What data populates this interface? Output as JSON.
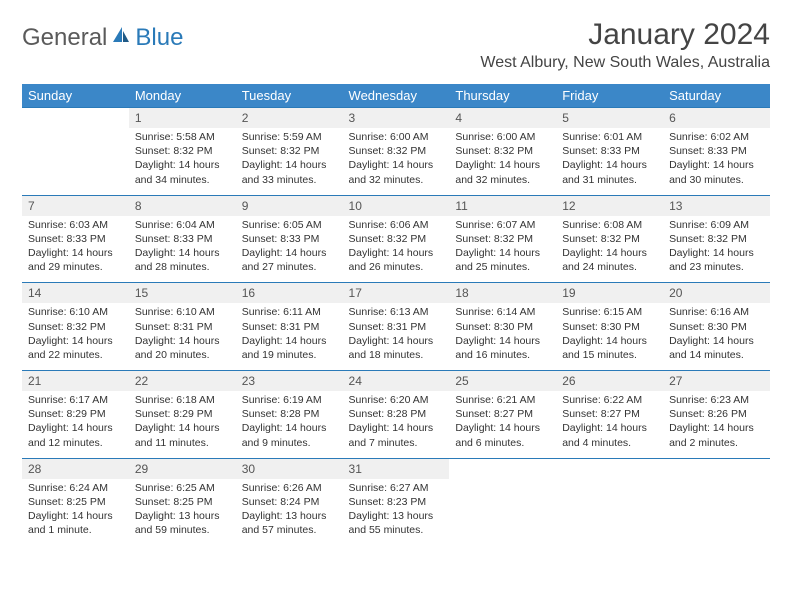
{
  "brand": {
    "part1": "General",
    "part2": "Blue"
  },
  "colors": {
    "header_bg": "#3b87c8",
    "header_text": "#ffffff",
    "daynum_bg": "#f0f0f0",
    "border": "#2a7ab8",
    "text": "#333333",
    "title": "#444444"
  },
  "title": "January 2024",
  "location": "West Albury, New South Wales, Australia",
  "daysOfWeek": [
    "Sunday",
    "Monday",
    "Tuesday",
    "Wednesday",
    "Thursday",
    "Friday",
    "Saturday"
  ],
  "weeks": [
    [
      null,
      {
        "n": "1",
        "sr": "Sunrise: 5:58 AM",
        "ss": "Sunset: 8:32 PM",
        "dl": "Daylight: 14 hours and 34 minutes."
      },
      {
        "n": "2",
        "sr": "Sunrise: 5:59 AM",
        "ss": "Sunset: 8:32 PM",
        "dl": "Daylight: 14 hours and 33 minutes."
      },
      {
        "n": "3",
        "sr": "Sunrise: 6:00 AM",
        "ss": "Sunset: 8:32 PM",
        "dl": "Daylight: 14 hours and 32 minutes."
      },
      {
        "n": "4",
        "sr": "Sunrise: 6:00 AM",
        "ss": "Sunset: 8:32 PM",
        "dl": "Daylight: 14 hours and 32 minutes."
      },
      {
        "n": "5",
        "sr": "Sunrise: 6:01 AM",
        "ss": "Sunset: 8:33 PM",
        "dl": "Daylight: 14 hours and 31 minutes."
      },
      {
        "n": "6",
        "sr": "Sunrise: 6:02 AM",
        "ss": "Sunset: 8:33 PM",
        "dl": "Daylight: 14 hours and 30 minutes."
      }
    ],
    [
      {
        "n": "7",
        "sr": "Sunrise: 6:03 AM",
        "ss": "Sunset: 8:33 PM",
        "dl": "Daylight: 14 hours and 29 minutes."
      },
      {
        "n": "8",
        "sr": "Sunrise: 6:04 AM",
        "ss": "Sunset: 8:33 PM",
        "dl": "Daylight: 14 hours and 28 minutes."
      },
      {
        "n": "9",
        "sr": "Sunrise: 6:05 AM",
        "ss": "Sunset: 8:33 PM",
        "dl": "Daylight: 14 hours and 27 minutes."
      },
      {
        "n": "10",
        "sr": "Sunrise: 6:06 AM",
        "ss": "Sunset: 8:32 PM",
        "dl": "Daylight: 14 hours and 26 minutes."
      },
      {
        "n": "11",
        "sr": "Sunrise: 6:07 AM",
        "ss": "Sunset: 8:32 PM",
        "dl": "Daylight: 14 hours and 25 minutes."
      },
      {
        "n": "12",
        "sr": "Sunrise: 6:08 AM",
        "ss": "Sunset: 8:32 PM",
        "dl": "Daylight: 14 hours and 24 minutes."
      },
      {
        "n": "13",
        "sr": "Sunrise: 6:09 AM",
        "ss": "Sunset: 8:32 PM",
        "dl": "Daylight: 14 hours and 23 minutes."
      }
    ],
    [
      {
        "n": "14",
        "sr": "Sunrise: 6:10 AM",
        "ss": "Sunset: 8:32 PM",
        "dl": "Daylight: 14 hours and 22 minutes."
      },
      {
        "n": "15",
        "sr": "Sunrise: 6:10 AM",
        "ss": "Sunset: 8:31 PM",
        "dl": "Daylight: 14 hours and 20 minutes."
      },
      {
        "n": "16",
        "sr": "Sunrise: 6:11 AM",
        "ss": "Sunset: 8:31 PM",
        "dl": "Daylight: 14 hours and 19 minutes."
      },
      {
        "n": "17",
        "sr": "Sunrise: 6:13 AM",
        "ss": "Sunset: 8:31 PM",
        "dl": "Daylight: 14 hours and 18 minutes."
      },
      {
        "n": "18",
        "sr": "Sunrise: 6:14 AM",
        "ss": "Sunset: 8:30 PM",
        "dl": "Daylight: 14 hours and 16 minutes."
      },
      {
        "n": "19",
        "sr": "Sunrise: 6:15 AM",
        "ss": "Sunset: 8:30 PM",
        "dl": "Daylight: 14 hours and 15 minutes."
      },
      {
        "n": "20",
        "sr": "Sunrise: 6:16 AM",
        "ss": "Sunset: 8:30 PM",
        "dl": "Daylight: 14 hours and 14 minutes."
      }
    ],
    [
      {
        "n": "21",
        "sr": "Sunrise: 6:17 AM",
        "ss": "Sunset: 8:29 PM",
        "dl": "Daylight: 14 hours and 12 minutes."
      },
      {
        "n": "22",
        "sr": "Sunrise: 6:18 AM",
        "ss": "Sunset: 8:29 PM",
        "dl": "Daylight: 14 hours and 11 minutes."
      },
      {
        "n": "23",
        "sr": "Sunrise: 6:19 AM",
        "ss": "Sunset: 8:28 PM",
        "dl": "Daylight: 14 hours and 9 minutes."
      },
      {
        "n": "24",
        "sr": "Sunrise: 6:20 AM",
        "ss": "Sunset: 8:28 PM",
        "dl": "Daylight: 14 hours and 7 minutes."
      },
      {
        "n": "25",
        "sr": "Sunrise: 6:21 AM",
        "ss": "Sunset: 8:27 PM",
        "dl": "Daylight: 14 hours and 6 minutes."
      },
      {
        "n": "26",
        "sr": "Sunrise: 6:22 AM",
        "ss": "Sunset: 8:27 PM",
        "dl": "Daylight: 14 hours and 4 minutes."
      },
      {
        "n": "27",
        "sr": "Sunrise: 6:23 AM",
        "ss": "Sunset: 8:26 PM",
        "dl": "Daylight: 14 hours and 2 minutes."
      }
    ],
    [
      {
        "n": "28",
        "sr": "Sunrise: 6:24 AM",
        "ss": "Sunset: 8:25 PM",
        "dl": "Daylight: 14 hours and 1 minute."
      },
      {
        "n": "29",
        "sr": "Sunrise: 6:25 AM",
        "ss": "Sunset: 8:25 PM",
        "dl": "Daylight: 13 hours and 59 minutes."
      },
      {
        "n": "30",
        "sr": "Sunrise: 6:26 AM",
        "ss": "Sunset: 8:24 PM",
        "dl": "Daylight: 13 hours and 57 minutes."
      },
      {
        "n": "31",
        "sr": "Sunrise: 6:27 AM",
        "ss": "Sunset: 8:23 PM",
        "dl": "Daylight: 13 hours and 55 minutes."
      },
      null,
      null,
      null
    ]
  ]
}
